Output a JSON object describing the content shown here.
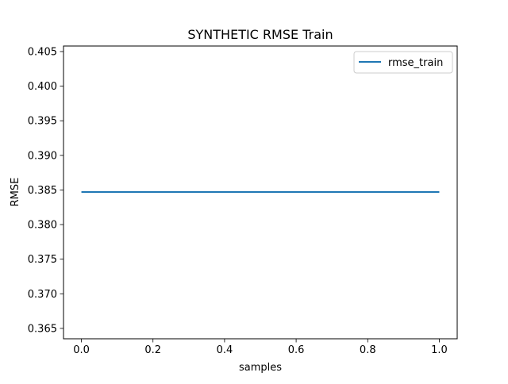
{
  "chart_data": {
    "type": "line",
    "title": "SYNTHETIC RMSE Train",
    "xlabel": "samples",
    "ylabel": "RMSE",
    "xlim": [
      -0.05,
      1.05
    ],
    "ylim": [
      0.3635,
      0.4058
    ],
    "x_ticks": [
      0.0,
      0.2,
      0.4,
      0.6,
      0.8,
      1.0
    ],
    "x_tick_labels": [
      "0.0",
      "0.2",
      "0.4",
      "0.6",
      "0.8",
      "1.0"
    ],
    "y_ticks": [
      0.365,
      0.37,
      0.375,
      0.38,
      0.385,
      0.39,
      0.395,
      0.4,
      0.405
    ],
    "y_tick_labels": [
      "0.365",
      "0.370",
      "0.375",
      "0.380",
      "0.385",
      "0.390",
      "0.395",
      "0.400",
      "0.405"
    ],
    "grid": false,
    "legend_position": "top-right",
    "series": [
      {
        "name": "rmse_train",
        "color": "#1f77b4",
        "x": [
          0.0,
          1.0
        ],
        "y": [
          0.3847,
          0.3847
        ]
      }
    ]
  }
}
